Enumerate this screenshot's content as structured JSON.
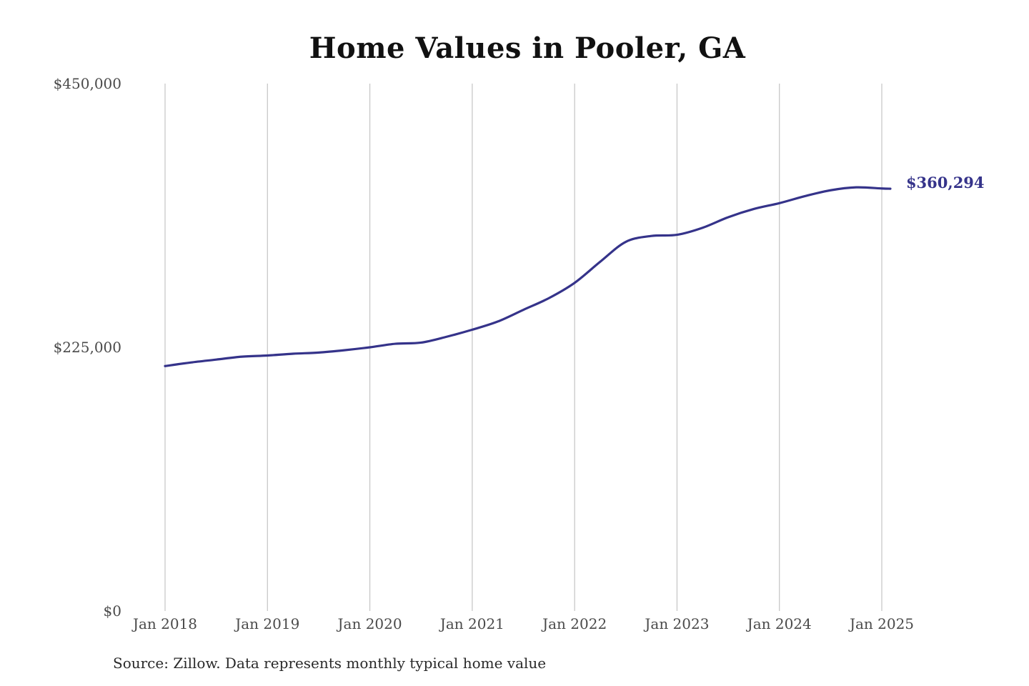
{
  "colors": {
    "series": "#35338a",
    "gridline": "#c4c4c4",
    "tick_text": "#4a4a4a"
  },
  "chart_data": {
    "type": "line",
    "title": "Home Values in Pooler, GA",
    "xlabel": "",
    "ylabel": "",
    "source": "Source: Zillow. Data represents monthly typical home value",
    "ylim": [
      0,
      450000
    ],
    "y_ticks": [
      {
        "value": 0,
        "label": "$0"
      },
      {
        "value": 225000,
        "label": "$225,000"
      },
      {
        "value": 450000,
        "label": "$450,000"
      }
    ],
    "x_ticks": [
      {
        "value": "2018-01",
        "label": "Jan 2018"
      },
      {
        "value": "2019-01",
        "label": "Jan 2019"
      },
      {
        "value": "2020-01",
        "label": "Jan 2020"
      },
      {
        "value": "2021-01",
        "label": "Jan 2021"
      },
      {
        "value": "2022-01",
        "label": "Jan 2022"
      },
      {
        "value": "2023-01",
        "label": "Jan 2023"
      },
      {
        "value": "2024-01",
        "label": "Jan 2024"
      },
      {
        "value": "2025-01",
        "label": "Jan 2025"
      }
    ],
    "grid": "vertical",
    "series": [
      {
        "end_label": "$360,294",
        "points": [
          {
            "x": "2018-01",
            "y": 209000
          },
          {
            "x": "2018-04",
            "y": 212000
          },
          {
            "x": "2018-07",
            "y": 214500
          },
          {
            "x": "2018-10",
            "y": 217000
          },
          {
            "x": "2019-01",
            "y": 218000
          },
          {
            "x": "2019-04",
            "y": 219500
          },
          {
            "x": "2019-07",
            "y": 220500
          },
          {
            "x": "2019-10",
            "y": 222500
          },
          {
            "x": "2020-01",
            "y": 225000
          },
          {
            "x": "2020-04",
            "y": 228000
          },
          {
            "x": "2020-07",
            "y": 229000
          },
          {
            "x": "2020-10",
            "y": 234000
          },
          {
            "x": "2021-01",
            "y": 240000
          },
          {
            "x": "2021-04",
            "y": 247000
          },
          {
            "x": "2021-07",
            "y": 257000
          },
          {
            "x": "2021-10",
            "y": 267000
          },
          {
            "x": "2022-01",
            "y": 280000
          },
          {
            "x": "2022-04",
            "y": 298000
          },
          {
            "x": "2022-07",
            "y": 315000
          },
          {
            "x": "2022-10",
            "y": 320000
          },
          {
            "x": "2023-01",
            "y": 321000
          },
          {
            "x": "2023-04",
            "y": 327000
          },
          {
            "x": "2023-07",
            "y": 336000
          },
          {
            "x": "2023-10",
            "y": 343000
          },
          {
            "x": "2024-01",
            "y": 348000
          },
          {
            "x": "2024-04",
            "y": 354000
          },
          {
            "x": "2024-07",
            "y": 359000
          },
          {
            "x": "2024-10",
            "y": 361500
          },
          {
            "x": "2025-01",
            "y": 360500
          },
          {
            "x": "2025-02",
            "y": 360294
          }
        ]
      }
    ]
  }
}
